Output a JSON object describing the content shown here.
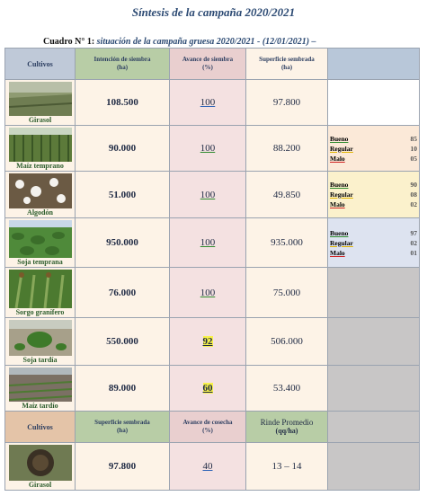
{
  "title": "Síntesis de la campaña 2020/2021",
  "subtitle": {
    "prefix": "Cuadro N° 1: ",
    "text": "situación de la campaña gruesa 2020/2021 - (12/01/2021) –"
  },
  "header": {
    "cultivos": "Cultivos",
    "intencion": "Intención de siembra",
    "intencion_unit": "(ha)",
    "avance": "Avance de siembra",
    "avance_unit": "(%)",
    "superficie": "Superficie sembrada",
    "superficie_unit": "(ha)"
  },
  "rows": [
    {
      "crop": "Girasol",
      "intencion": "108.500",
      "avance": "100",
      "superficie": "97.800"
    },
    {
      "crop": "Maíz temprano",
      "intencion": "90.000",
      "avance": "100",
      "superficie": "88.200",
      "quality": [
        {
          "label": "Bueno",
          "value": "85"
        },
        {
          "label": "Regular",
          "value": "10"
        },
        {
          "label": "Malo",
          "value": "05"
        }
      ]
    },
    {
      "crop": "Algodón",
      "intencion": "51.000",
      "avance": "100",
      "superficie": "49.850",
      "quality": [
        {
          "label": "Bueno",
          "value": "90"
        },
        {
          "label": "Regular",
          "value": "08"
        },
        {
          "label": "Malo",
          "value": "02"
        }
      ]
    },
    {
      "crop": "Soja temprana",
      "intencion": "950.000",
      "avance": "100",
      "superficie": "935.000",
      "quality": [
        {
          "label": "Bueno",
          "value": "97"
        },
        {
          "label": "Regular",
          "value": "02"
        },
        {
          "label": "Malo",
          "value": "01"
        }
      ]
    },
    {
      "crop": "Sorgo granífero",
      "intencion": "76.000",
      "avance": "100",
      "superficie": "75.000"
    },
    {
      "crop": "Soja tardía",
      "intencion": "550.000",
      "avance": "92",
      "superficie": "506.000"
    },
    {
      "crop": "Maíz tardío",
      "intencion": "89.000",
      "avance": "60",
      "superficie": "53.400"
    }
  ],
  "header2": {
    "cultivos": "Cultivos",
    "superficie": "Superficie sembrada",
    "superficie_unit": "(ha)",
    "avance": "Avance de cosecha",
    "avance_unit": "(%)",
    "rinde": "Rinde Promedio",
    "rinde_unit": "(qq/ha)"
  },
  "harvest": {
    "crop": "Girasol",
    "superficie": "97.800",
    "avance": "40",
    "rinde": "13 – 14"
  },
  "colors": {
    "title": "#2c4a73",
    "header_blue": "#b8c7d9",
    "header_green": "#b8cda6",
    "header_pink": "#e9cfcf",
    "cell_cream": "#fdf3e7",
    "cell_pink": "#f4e1e1",
    "highlight": "#f8f24a"
  }
}
